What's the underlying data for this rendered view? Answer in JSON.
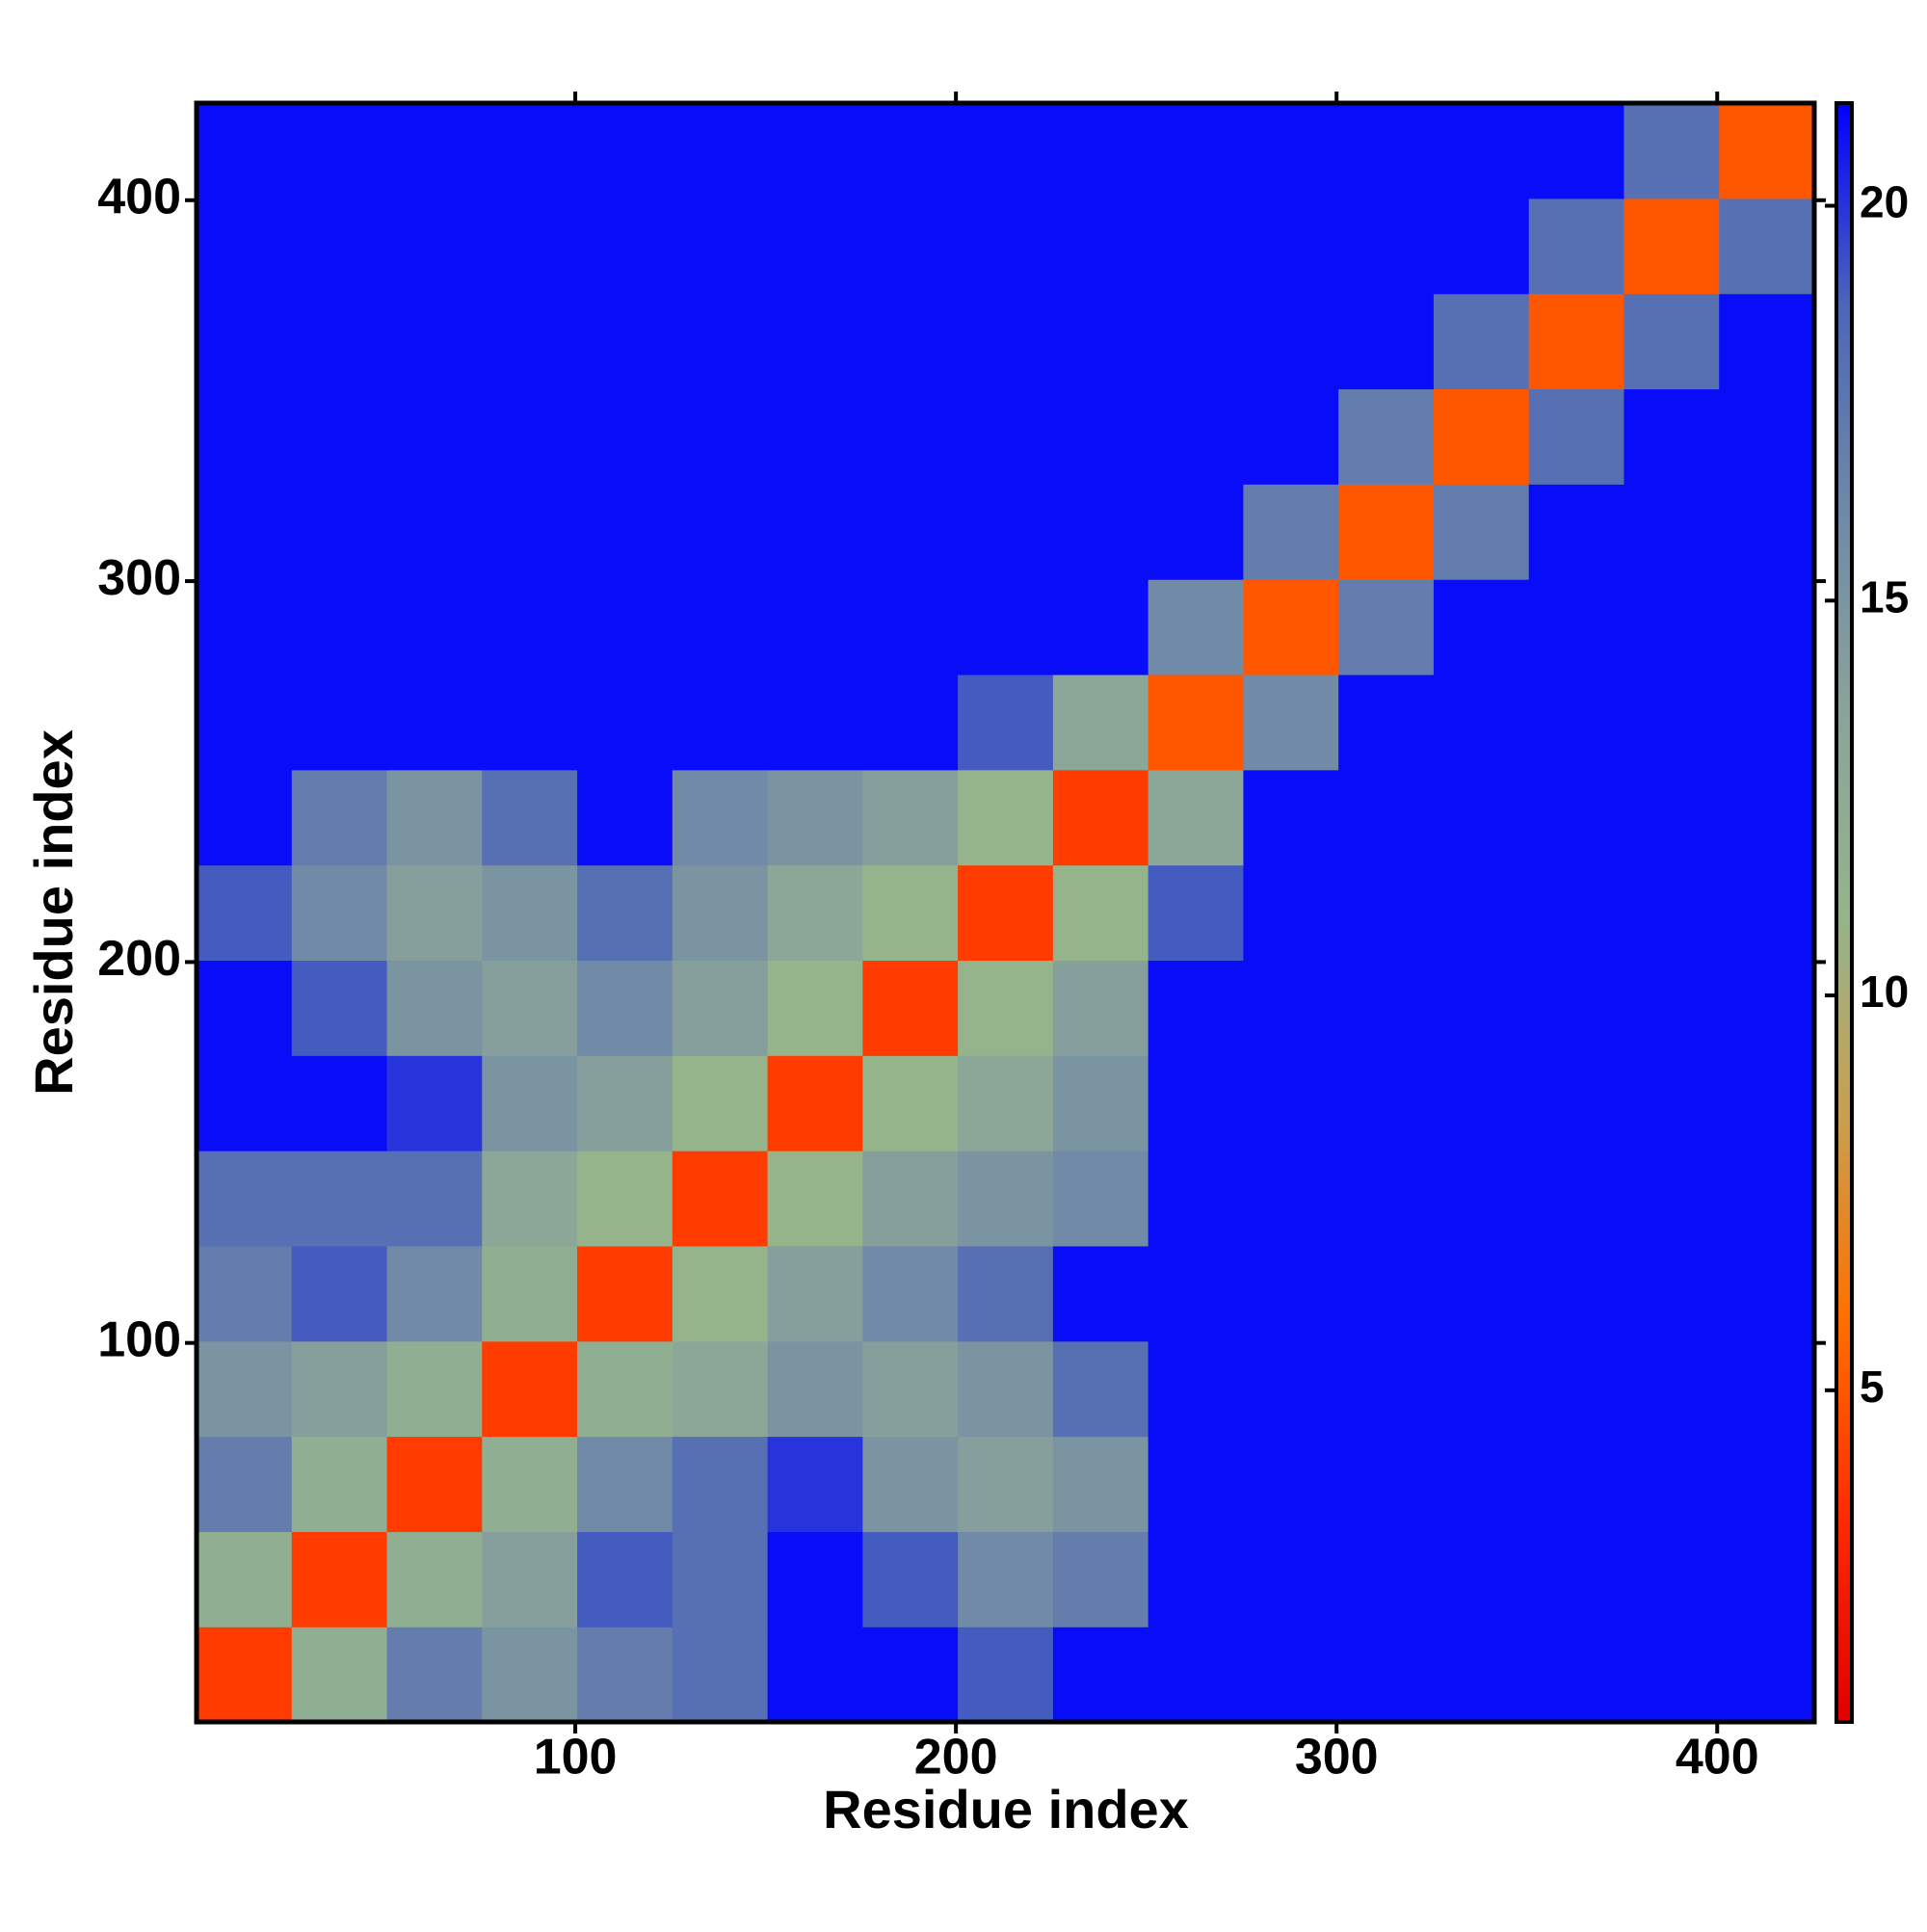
{
  "chart_data": {
    "type": "heatmap",
    "xlabel": "Residue index",
    "ylabel": "Residue index",
    "x_bins": [
      0.5,
      25.5,
      50.5,
      75.5,
      100.5,
      125.5,
      150.5,
      175.5,
      200.5,
      225.5,
      250.5,
      275.5,
      300.5,
      325.5,
      350.5,
      375.5,
      400.5,
      425.5
    ],
    "y_bins": [
      0.5,
      25.5,
      50.5,
      75.5,
      100.5,
      125.5,
      150.5,
      175.5,
      200.5,
      225.5,
      250.5,
      275.5,
      300.5,
      325.5,
      350.5,
      375.5,
      400.5,
      425.5
    ],
    "z": [
      [
        4,
        12,
        17,
        15,
        17,
        18,
        21,
        21,
        19,
        21,
        21,
        21,
        21,
        21,
        21,
        21,
        21
      ],
      [
        12,
        4,
        12,
        14,
        19,
        18,
        21,
        19,
        16,
        17,
        21,
        21,
        21,
        21,
        21,
        21,
        21
      ],
      [
        17,
        12,
        4,
        12,
        16,
        18,
        20,
        15,
        14,
        15,
        21,
        21,
        21,
        21,
        21,
        21,
        21
      ],
      [
        15,
        14,
        12,
        4,
        12,
        13,
        15,
        14,
        15,
        18,
        21,
        21,
        21,
        21,
        21,
        21,
        21
      ],
      [
        17,
        19,
        16,
        12,
        4,
        11,
        14,
        16,
        18,
        21,
        21,
        21,
        21,
        21,
        21,
        21,
        21
      ],
      [
        18,
        18,
        18,
        13,
        11,
        4,
        11,
        14,
        15,
        16,
        21,
        21,
        21,
        21,
        21,
        21,
        21
      ],
      [
        21,
        21,
        20,
        15,
        14,
        11,
        4,
        11,
        13,
        15,
        21,
        21,
        21,
        21,
        21,
        21,
        21
      ],
      [
        21,
        19,
        15,
        14,
        16,
        14,
        11,
        4,
        11,
        14,
        21,
        21,
        21,
        21,
        21,
        21,
        21
      ],
      [
        19,
        16,
        14,
        15,
        18,
        15,
        13,
        11,
        4,
        11,
        19,
        21,
        21,
        21,
        21,
        21,
        21
      ],
      [
        21,
        17,
        15,
        18,
        21,
        16,
        15,
        14,
        11,
        4,
        13,
        21,
        21,
        21,
        21,
        21,
        21
      ],
      [
        21,
        21,
        21,
        21,
        21,
        21,
        21,
        21,
        19,
        13,
        5,
        16,
        21,
        21,
        21,
        21,
        21
      ],
      [
        21,
        21,
        21,
        21,
        21,
        21,
        21,
        21,
        21,
        21,
        16,
        5,
        17,
        21,
        21,
        21,
        21
      ],
      [
        21,
        21,
        21,
        21,
        21,
        21,
        21,
        21,
        21,
        21,
        21,
        17,
        5,
        17,
        21,
        21,
        21
      ],
      [
        21,
        21,
        21,
        21,
        21,
        21,
        21,
        21,
        21,
        21,
        21,
        21,
        17,
        5,
        18,
        21,
        21
      ],
      [
        21,
        21,
        21,
        21,
        21,
        21,
        21,
        21,
        21,
        21,
        21,
        21,
        21,
        18,
        5,
        18,
        21
      ],
      [
        21,
        21,
        21,
        21,
        21,
        21,
        21,
        21,
        21,
        21,
        21,
        21,
        21,
        21,
        18,
        5,
        18
      ],
      [
        21,
        21,
        21,
        21,
        21,
        21,
        21,
        21,
        21,
        21,
        21,
        21,
        21,
        21,
        21,
        18,
        5
      ]
    ],
    "xlim": [
      0.5,
      425.5
    ],
    "ylim": [
      0.5,
      425.5
    ],
    "xticks": [
      100,
      200,
      300,
      400
    ],
    "yticks": [
      100,
      200,
      300,
      400
    ],
    "zlim": [
      0.8,
      21.3
    ],
    "zticks": [
      5,
      10,
      15,
      20
    ],
    "colors": [
      "#e00000",
      "#ff2a00",
      "#ff7000",
      "#c8a050",
      "#94b48c",
      "#8aa39a",
      "#6f88a8",
      "#4c66b8",
      "#0000ff"
    ]
  }
}
